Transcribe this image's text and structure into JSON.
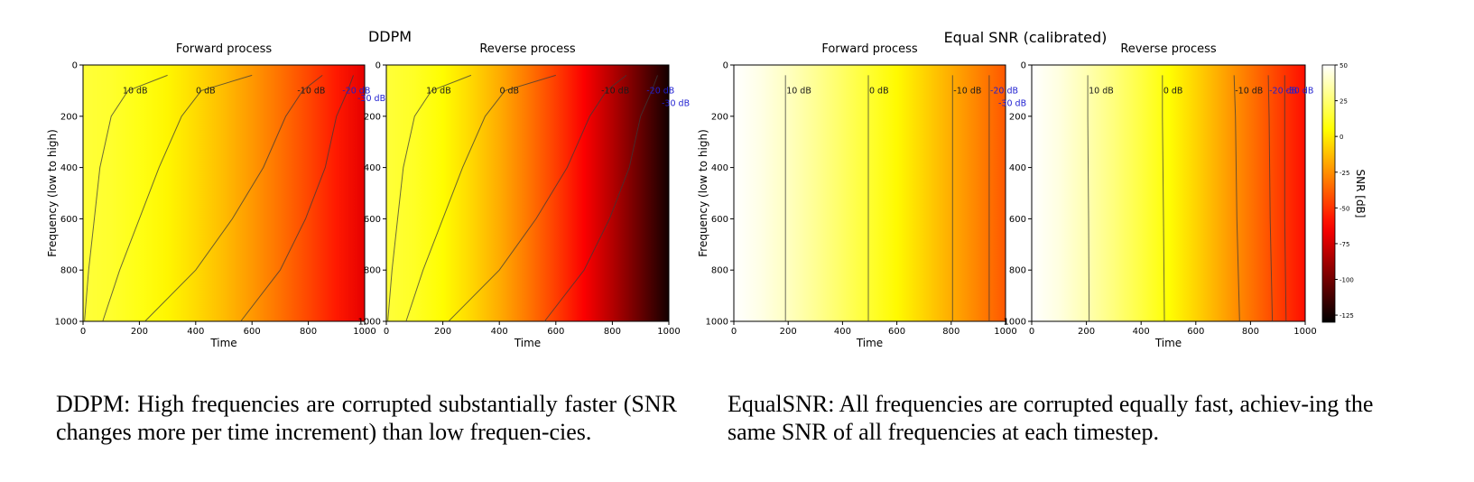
{
  "chart_data": [
    {
      "type": "heatmap",
      "group_title": "DDPM",
      "title": "Forward process",
      "xlabel": "Time",
      "ylabel": "Frequency (low to high)",
      "xlim": [
        0,
        1000
      ],
      "ylim": [
        0,
        1000
      ],
      "y_inverted": true,
      "x_ticks": [
        "0",
        "200",
        "400",
        "600",
        "800",
        "1000"
      ],
      "y_ticks": [
        "0",
        "200",
        "400",
        "600",
        "800",
        "1000"
      ],
      "snr_range_db": [
        15,
        -70
      ],
      "contours": [
        {
          "label": "10 dB",
          "points": [
            [
              5,
              1000
            ],
            [
              20,
              800
            ],
            [
              40,
              600
            ],
            [
              60,
              400
            ],
            [
              100,
              200
            ],
            [
              160,
              100
            ],
            [
              300,
              40
            ]
          ]
        },
        {
          "label": "0 dB",
          "points": [
            [
              70,
              1000
            ],
            [
              130,
              800
            ],
            [
              200,
              600
            ],
            [
              270,
              400
            ],
            [
              350,
              200
            ],
            [
              420,
              100
            ],
            [
              600,
              40
            ]
          ]
        },
        {
          "label": "-10 dB",
          "points": [
            [
              220,
              1000
            ],
            [
              400,
              800
            ],
            [
              530,
              600
            ],
            [
              640,
              400
            ],
            [
              720,
              200
            ],
            [
              780,
              100
            ],
            [
              850,
              40
            ]
          ]
        },
        {
          "label": "-20 dB",
          "points": [
            [
              560,
              1000
            ],
            [
              700,
              800
            ],
            [
              790,
              600
            ],
            [
              860,
              400
            ],
            [
              900,
              200
            ],
            [
              940,
              100
            ],
            [
              960,
              40
            ]
          ]
        },
        {
          "label": "-30 dB",
          "points": [
            [
              1000,
              130
            ]
          ]
        }
      ]
    },
    {
      "type": "heatmap",
      "group_title": "DDPM",
      "title": "Reverse process",
      "xlabel": "Time",
      "ylabel": "",
      "xlim": [
        0,
        1000
      ],
      "ylim": [
        0,
        1000
      ],
      "y_inverted": true,
      "x_ticks": [
        "0",
        "200",
        "400",
        "600",
        "800",
        "1000"
      ],
      "y_ticks": [
        "0",
        "200",
        "400",
        "600",
        "800",
        "1000"
      ],
      "snr_range_db": [
        15,
        -125
      ],
      "contours": [
        {
          "label": "10 dB",
          "points": [
            [
              5,
              1000
            ],
            [
              20,
              800
            ],
            [
              40,
              600
            ],
            [
              60,
              400
            ],
            [
              100,
              200
            ],
            [
              160,
              100
            ],
            [
              300,
              40
            ]
          ]
        },
        {
          "label": "0 dB",
          "points": [
            [
              70,
              1000
            ],
            [
              130,
              800
            ],
            [
              200,
              600
            ],
            [
              270,
              400
            ],
            [
              350,
              200
            ],
            [
              420,
              100
            ],
            [
              600,
              40
            ]
          ]
        },
        {
          "label": "-10 dB",
          "points": [
            [
              220,
              1000
            ],
            [
              400,
              800
            ],
            [
              530,
              600
            ],
            [
              640,
              400
            ],
            [
              720,
              200
            ],
            [
              780,
              100
            ],
            [
              850,
              40
            ]
          ]
        },
        {
          "label": "-20 dB",
          "points": [
            [
              560,
              1000
            ],
            [
              700,
              800
            ],
            [
              790,
              600
            ],
            [
              860,
              400
            ],
            [
              900,
              200
            ],
            [
              940,
              100
            ],
            [
              960,
              40
            ]
          ]
        },
        {
          "label": "-30 dB",
          "points": [
            [
              1000,
              150
            ]
          ]
        }
      ]
    },
    {
      "type": "heatmap",
      "group_title": "Equal SNR (calibrated)",
      "title": "Forward process",
      "xlabel": "Time",
      "ylabel": "Frequency (low to high)",
      "xlim": [
        0,
        1000
      ],
      "ylim": [
        0,
        1000
      ],
      "y_inverted": true,
      "x_ticks": [
        "0",
        "200",
        "400",
        "600",
        "800",
        "1000"
      ],
      "y_ticks": [
        "0",
        "200",
        "400",
        "600",
        "800",
        "1000"
      ],
      "snr_range_db": [
        50,
        -40
      ],
      "contours": [
        {
          "label": "10 dB",
          "points": [
            [
              190,
              1000
            ],
            [
              190,
              40
            ]
          ]
        },
        {
          "label": "0 dB",
          "points": [
            [
              495,
              1000
            ],
            [
              495,
              40
            ]
          ]
        },
        {
          "label": "-10 dB",
          "points": [
            [
              805,
              1000
            ],
            [
              805,
              40
            ]
          ]
        },
        {
          "label": "-20 dB",
          "points": [
            [
              940,
              1000
            ],
            [
              940,
              40
            ]
          ]
        },
        {
          "label": "-30 dB",
          "points": [
            [
              1000,
              150
            ]
          ]
        }
      ]
    },
    {
      "type": "heatmap",
      "group_title": "Equal SNR (calibrated)",
      "title": "Reverse process",
      "xlabel": "Time",
      "ylabel": "",
      "xlim": [
        0,
        1000
      ],
      "ylim": [
        0,
        1000
      ],
      "y_inverted": true,
      "x_ticks": [
        "0",
        "200",
        "400",
        "600",
        "800",
        "1000"
      ],
      "y_ticks": [
        "0",
        "200",
        "400",
        "600",
        "800",
        "1000"
      ],
      "snr_range_db": [
        50,
        -60
      ],
      "contours": [
        {
          "label": "10 dB",
          "points": [
            [
              210,
              1000
            ],
            [
              208,
              600
            ],
            [
              205,
              200
            ],
            [
              205,
              40
            ]
          ]
        },
        {
          "label": "0 dB",
          "points": [
            [
              485,
              1000
            ],
            [
              482,
              600
            ],
            [
              478,
              200
            ],
            [
              478,
              40
            ]
          ]
        },
        {
          "label": "-10 dB",
          "points": [
            [
              760,
              1000
            ],
            [
              750,
              600
            ],
            [
              745,
              200
            ],
            [
              740,
              40
            ]
          ]
        },
        {
          "label": "-20 dB",
          "points": [
            [
              880,
              1000
            ],
            [
              872,
              600
            ],
            [
              868,
              200
            ],
            [
              865,
              40
            ]
          ]
        },
        {
          "label": "-30 dB",
          "points": [
            [
              930,
              1000
            ],
            [
              925,
              600
            ],
            [
              925,
              200
            ],
            [
              925,
              40
            ]
          ]
        }
      ]
    }
  ],
  "colorbar": {
    "label": "SNR [dB]",
    "range": [
      50,
      -130
    ],
    "ticks": [
      "50",
      "25",
      "0",
      "-25",
      "-50",
      "-75",
      "-100",
      "-125"
    ],
    "tick_values": [
      50,
      25,
      0,
      -25,
      -50,
      -75,
      -100,
      -125
    ],
    "colormap": "hot"
  },
  "captions": {
    "left": "DDPM: High frequencies are corrupted substantially faster (SNR changes more per time increment) than low frequen-cies.",
    "right": "EqualSNR: All frequencies are corrupted equally fast, achiev-ing the same SNR of all frequencies at each timestep."
  }
}
